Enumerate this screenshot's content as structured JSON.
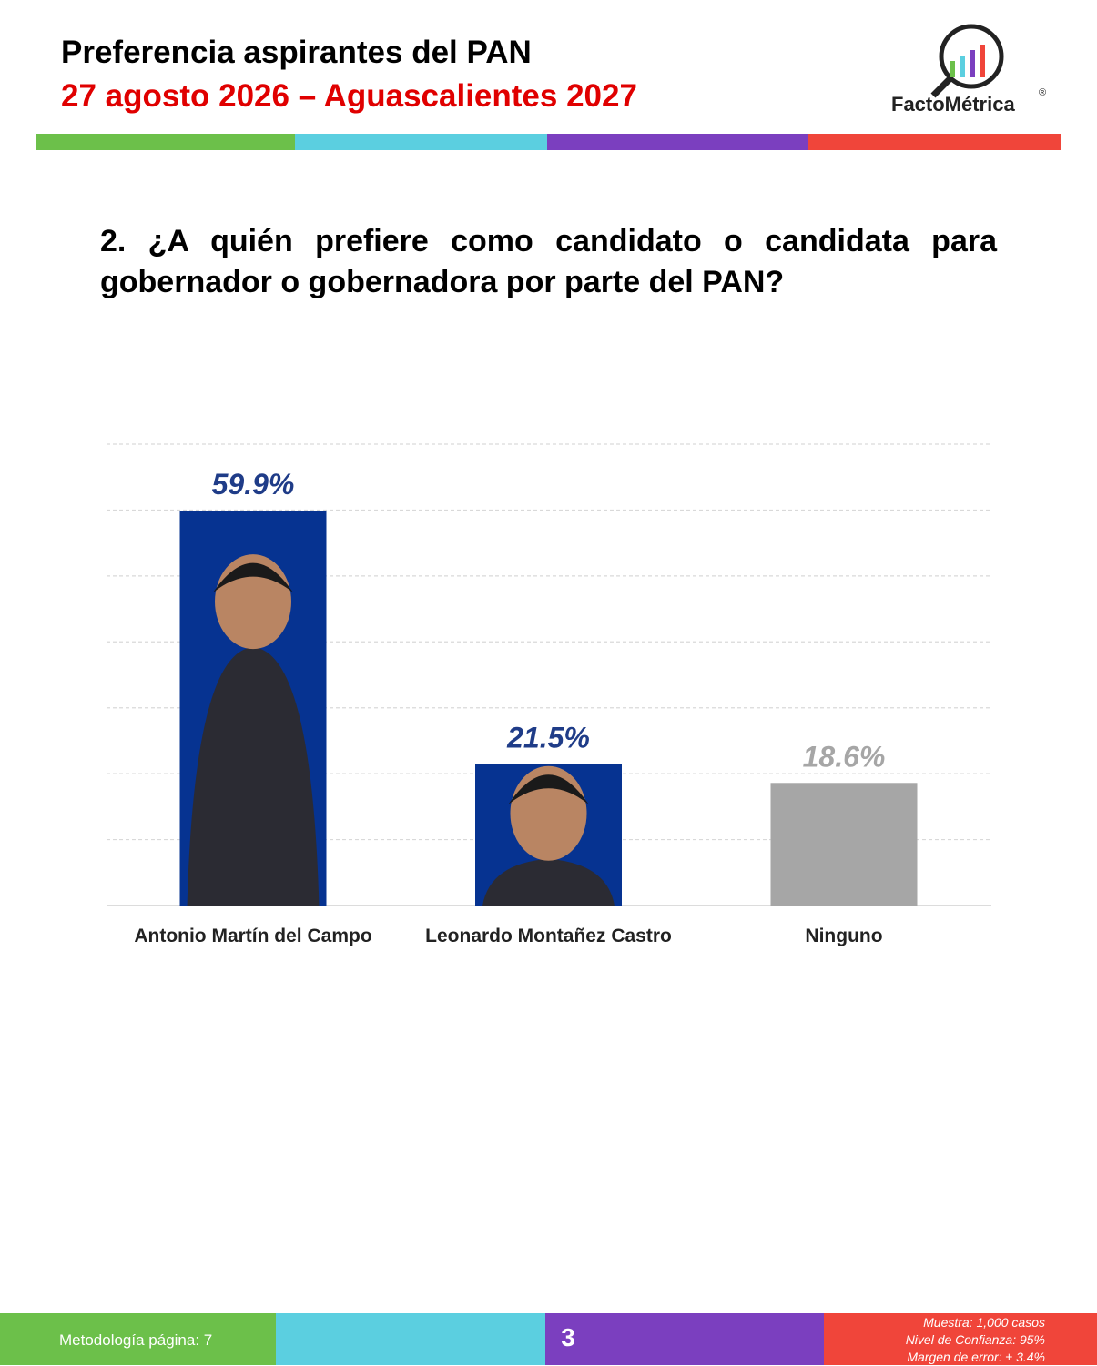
{
  "header": {
    "title": "Preferencia aspirantes del PAN",
    "subtitle": "27 agosto 2026 – Aguascalientes 2027",
    "brand": "FactoMétrica",
    "registered": "®"
  },
  "question": "2. ¿A quién prefiere como candidato o candidata para gobernador o gobernadora por parte del PAN?",
  "chart_data": {
    "type": "bar",
    "categories": [
      "Antonio Martín del Campo",
      "Leonardo Montañez Castro",
      "Ninguno"
    ],
    "values": [
      59.9,
      21.5,
      18.6
    ],
    "value_labels": [
      "59.9%",
      "21.5%",
      "18.6%"
    ],
    "colors": [
      "#063391",
      "#063391",
      "#a6a6a6"
    ],
    "ylim": [
      0,
      70
    ],
    "yticks": [
      0,
      10,
      20,
      30,
      40,
      50,
      60,
      70
    ],
    "grid": true
  },
  "footer": {
    "methodology": "Metodología página: 7",
    "page": "3",
    "notes": [
      "Muestra:  1,000 casos",
      "Nivel de Confianza: 95%",
      "Margen de error: ± 3.4%"
    ]
  }
}
